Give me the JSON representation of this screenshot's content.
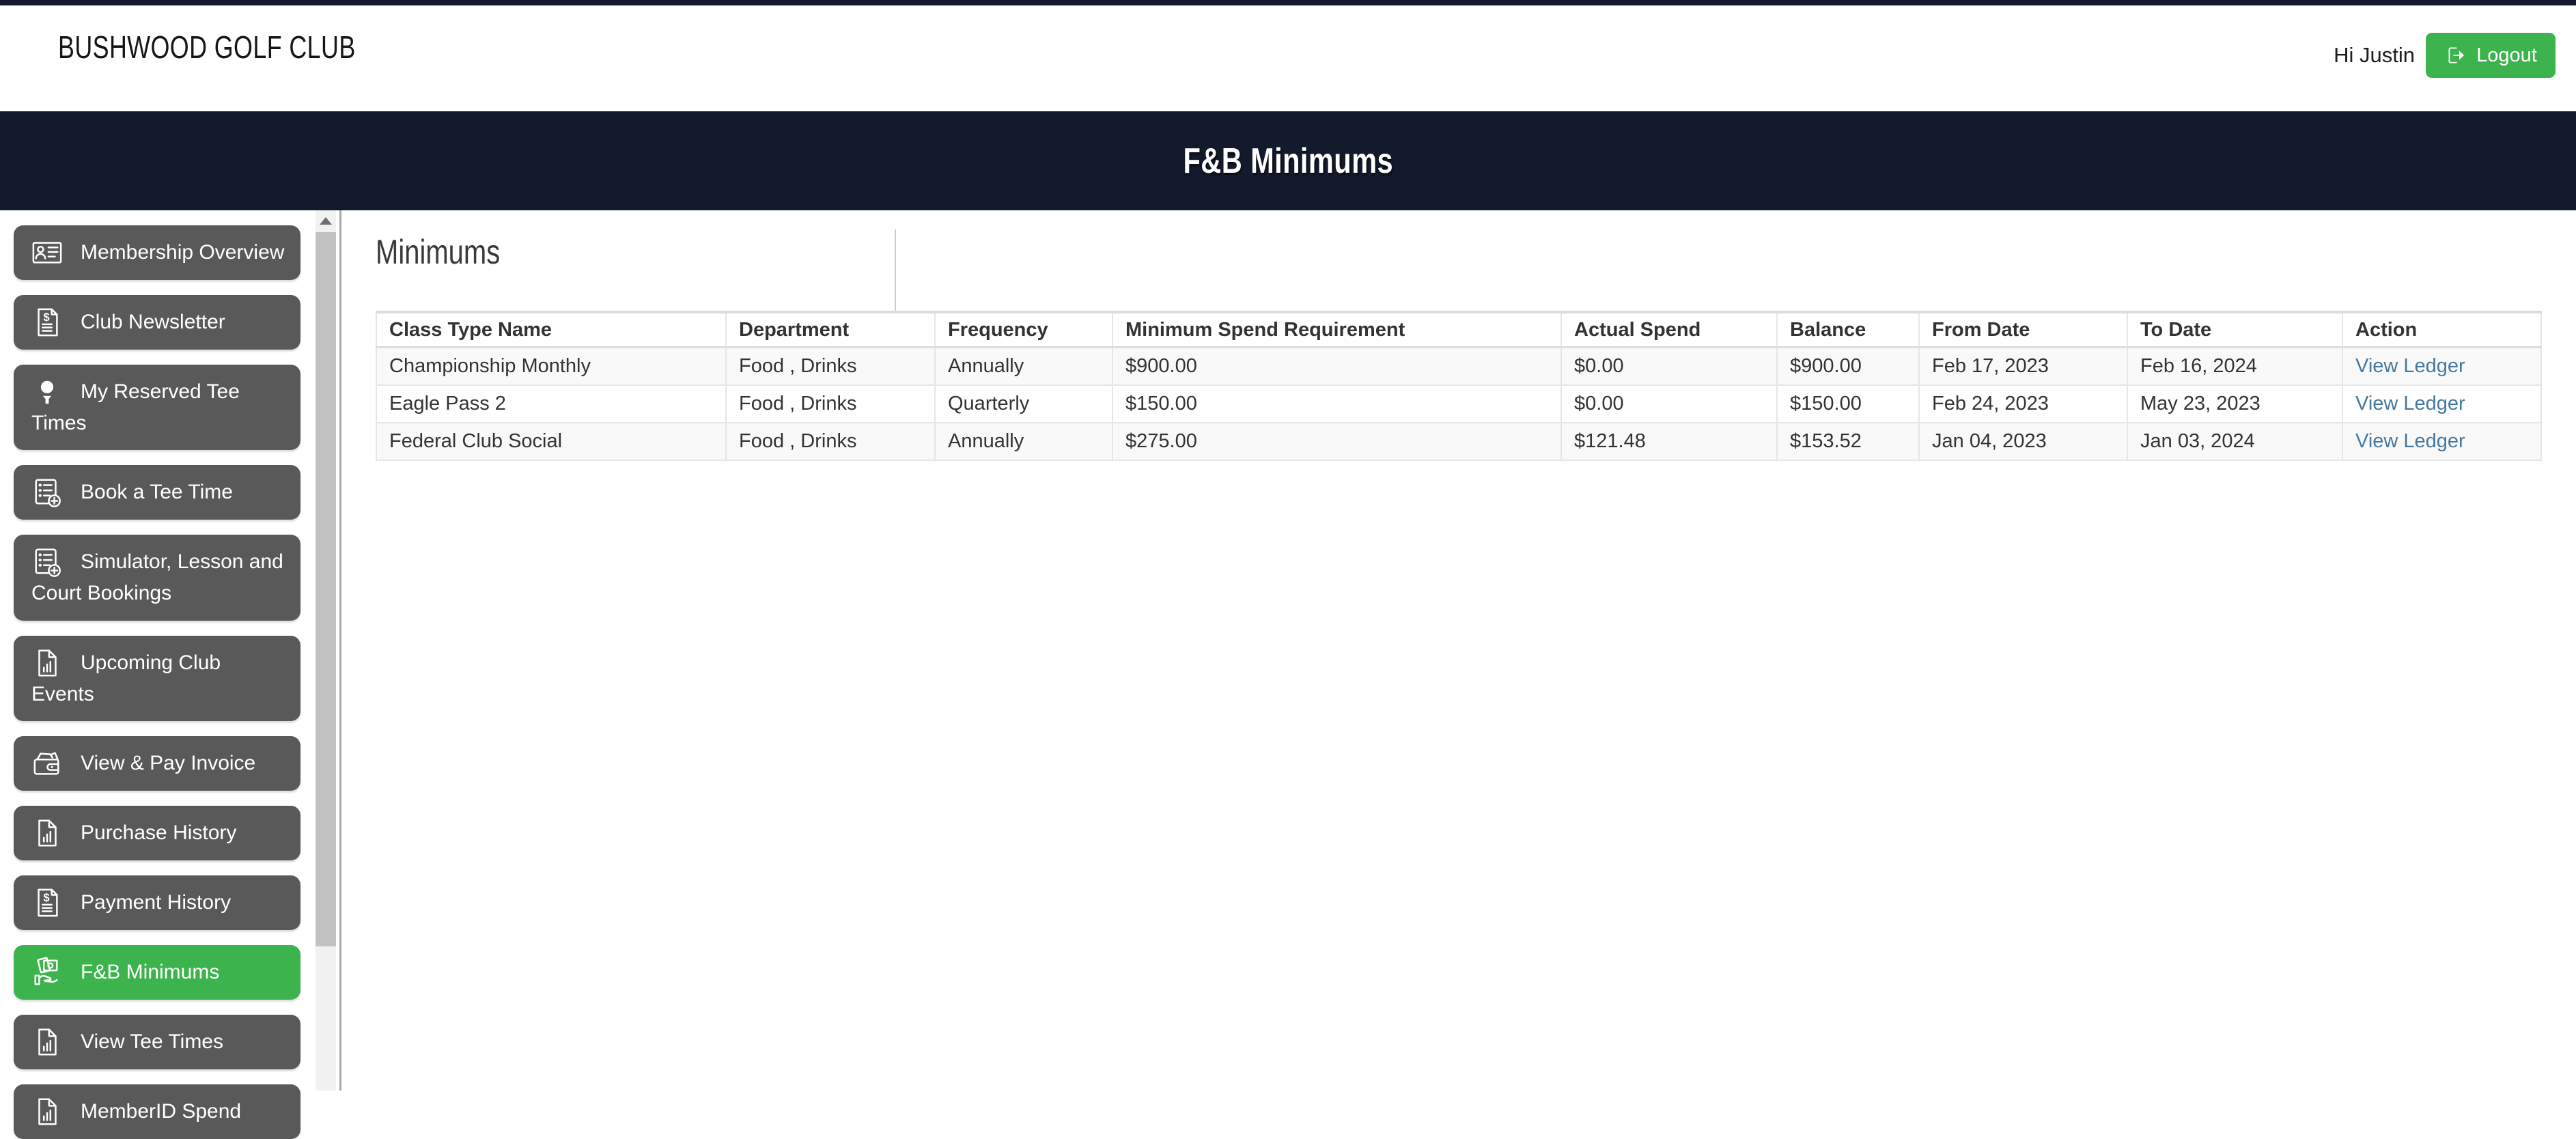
{
  "header": {
    "brand": "BUSHWOOD GOLF CLUB",
    "greeting": "Hi Justin",
    "logout_label": "Logout",
    "logout_icon": "logout-icon"
  },
  "banner": {
    "title": "F&B Minimums"
  },
  "sidebar": {
    "items": [
      {
        "label": "Membership Overview",
        "icon": "id-card-icon",
        "active": false
      },
      {
        "label": "Club Newsletter",
        "icon": "invoice-dollar-icon",
        "active": false
      },
      {
        "label": "My Reserved Tee Times",
        "icon": "golf-tee-icon",
        "active": false
      },
      {
        "label": "Book a Tee Time",
        "icon": "list-plus-icon",
        "active": false
      },
      {
        "label": "Simulator, Lesson and Court Bookings",
        "icon": "list-plus-icon",
        "active": false
      },
      {
        "label": "Upcoming Club Events",
        "icon": "file-chart-icon",
        "active": false
      },
      {
        "label": "View & Pay Invoice",
        "icon": "wallet-icon",
        "active": false
      },
      {
        "label": "Purchase History",
        "icon": "file-chart-icon",
        "active": false
      },
      {
        "label": "Payment History",
        "icon": "invoice-dollar-icon",
        "active": false
      },
      {
        "label": "F&B Minimums",
        "icon": "money-hand-icon",
        "active": true
      },
      {
        "label": "View Tee Times",
        "icon": "file-chart-icon",
        "active": false
      },
      {
        "label": "MemberID Spend",
        "icon": "file-chart-icon",
        "active": false
      }
    ],
    "scrollbar": {
      "up_arrow_icon": "triangle-up-icon"
    }
  },
  "main": {
    "heading": "Minimums",
    "table": {
      "columns": [
        "Class Type Name",
        "Department",
        "Frequency",
        "Minimum Spend Requirement",
        "Actual Spend",
        "Balance",
        "From Date",
        "To Date",
        "Action"
      ],
      "rows": [
        [
          "Championship Monthly",
          "Food , Drinks",
          "Annually",
          "$900.00",
          "$0.00",
          "$900.00",
          "Feb 17, 2023",
          "Feb 16, 2024",
          "View Ledger"
        ],
        [
          "Eagle Pass 2",
          "Food , Drinks",
          "Quarterly",
          "$150.00",
          "$0.00",
          "$150.00",
          "Feb 24, 2023",
          "May 23, 2023",
          "View Ledger"
        ],
        [
          "Federal Club Social",
          "Food , Drinks",
          "Annually",
          "$275.00",
          "$121.48",
          "$153.52",
          "Jan 04, 2023",
          "Jan 03, 2024",
          "View Ledger"
        ]
      ]
    }
  },
  "colors": {
    "banner_navy": "#131a2b",
    "sidebar_gray": "#595959",
    "accent_green": "#3cb34d",
    "link_blue": "#45789f"
  }
}
